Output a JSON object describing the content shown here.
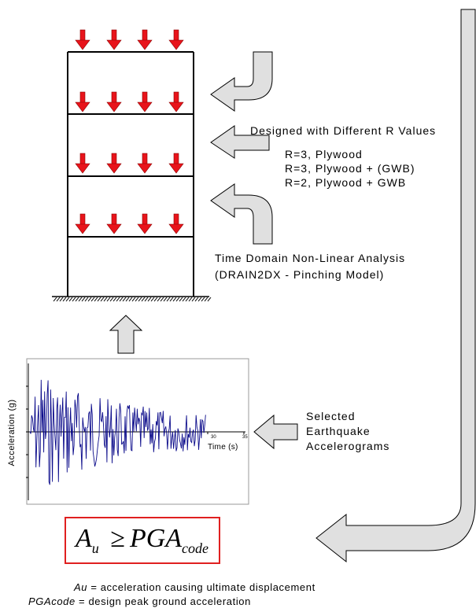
{
  "labels": {
    "designed": "Designed with Different R Values",
    "r1": "R=3, Plywood",
    "r2": "R=3, Plywood + (GWB)",
    "r3": "R=2, Plywood + GWB",
    "analysis_line1": "Time Domain Non-Linear Analysis",
    "analysis_line2": "(DRAIN2DX - Pinching Model)",
    "selected_line1": "Selected",
    "selected_line2": "Earthquake",
    "selected_line3": "Accelerograms"
  },
  "equation": {
    "a": "A",
    "a_sub": "u",
    "ge": "≥",
    "pga": "PGA",
    "pga_sub": "code"
  },
  "legend": {
    "au_term": "Au",
    "au_def": " = acceleration causing ultimate displacement",
    "pga_term": "PGAcode",
    "pga_def": " = design peak ground acceleration"
  },
  "chart_data": {
    "type": "line",
    "xlabel": "Time (s)",
    "ylabel": "Acceleration (g)",
    "x_ticks": [
      "30",
      "35"
    ]
  },
  "colors": {
    "load_arrow": "#e8141b",
    "block_arrow_fill": "#e0e0e0",
    "signal": "#0a0a8a",
    "eq_border": "#e02020"
  }
}
